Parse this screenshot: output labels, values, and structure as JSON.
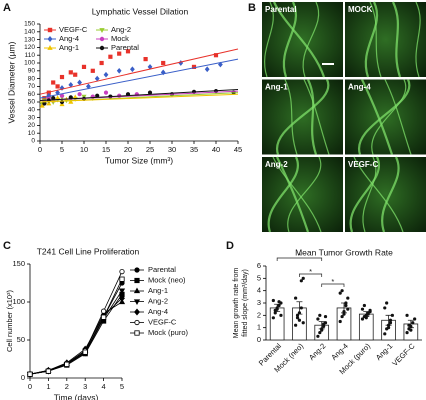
{
  "chart_data": [
    {
      "type": "scatter",
      "panel": "A",
      "title": "Lymphatic Vessel Dilation",
      "x_label": "Tumor Size (mm³)",
      "y_label": "Vessel Diameter (µm)",
      "xlim": [
        0,
        45
      ],
      "xticks": [
        0,
        5,
        10,
        15,
        20,
        25,
        30,
        35,
        40,
        45
      ],
      "ylim": [
        0,
        150
      ],
      "yticks": [
        0,
        10,
        20,
        30,
        40,
        50,
        60,
        70,
        80,
        90,
        100,
        110,
        120,
        130,
        140,
        150
      ],
      "series": [
        {
          "name": "VEGF-C",
          "color": "#e8322b",
          "marker": "square",
          "x": [
            1,
            2,
            3,
            4,
            5,
            7,
            8,
            10,
            12,
            14,
            16,
            18,
            20,
            24,
            28,
            35,
            40
          ],
          "values": [
            55,
            62,
            75,
            70,
            82,
            88,
            85,
            95,
            90,
            100,
            108,
            112,
            115,
            105,
            100,
            95,
            110
          ],
          "fit_x": [
            0,
            45
          ],
          "fit_y": [
            60,
            118
          ]
        },
        {
          "name": "Ang-2",
          "color": "#9acd32",
          "marker": "triangle-down",
          "x": [
            0.5,
            1,
            2,
            3,
            4,
            5,
            6,
            8,
            10,
            12
          ],
          "values": [
            48,
            52,
            55,
            50,
            53,
            56,
            52,
            54,
            57,
            55
          ],
          "fit_x": [
            0,
            45
          ],
          "fit_y": [
            50,
            62
          ]
        },
        {
          "name": "Ang-4",
          "color": "#3a5fc8",
          "marker": "diamond",
          "x": [
            1,
            2,
            4,
            5,
            7,
            9,
            11,
            13,
            15,
            18,
            21,
            25,
            28,
            32,
            38,
            41
          ],
          "values": [
            50,
            58,
            62,
            68,
            72,
            75,
            70,
            80,
            85,
            90,
            92,
            95,
            88,
            100,
            92,
            98
          ],
          "fit_x": [
            0,
            45
          ],
          "fit_y": [
            55,
            105
          ]
        },
        {
          "name": "Mock",
          "color": "#c83fbf",
          "marker": "circle",
          "x": [
            1,
            2,
            3,
            5,
            7,
            9,
            12,
            15,
            18,
            22
          ],
          "values": [
            50,
            55,
            52,
            58,
            55,
            60,
            57,
            62,
            58,
            60
          ],
          "fit_x": [
            0,
            45
          ],
          "fit_y": [
            52,
            64
          ]
        },
        {
          "name": "Ang-1",
          "color": "#f0c400",
          "marker": "triangle-up",
          "x": [
            0.5,
            1,
            2,
            3,
            4,
            5,
            6,
            7,
            8
          ],
          "values": [
            45,
            50,
            48,
            52,
            55,
            47,
            53,
            50,
            56
          ],
          "fit_x": [
            0,
            45
          ],
          "fit_y": [
            50,
            60
          ]
        },
        {
          "name": "Parental",
          "color": "#111111",
          "marker": "circle",
          "x": [
            1,
            2,
            3,
            5,
            7,
            10,
            13,
            16,
            20,
            25,
            30,
            35,
            40,
            44
          ],
          "values": [
            48,
            52,
            55,
            50,
            56,
            54,
            58,
            57,
            60,
            62,
            60,
            63,
            64,
            62
          ],
          "fit_x": [
            0,
            45
          ],
          "fit_y": [
            52,
            66
          ]
        }
      ]
    },
    {
      "type": "line",
      "panel": "C",
      "title": "T241 Cell Line Proliferation",
      "x_label": "Time (days)",
      "y_label": "Cell number (x10³)",
      "x": [
        0,
        1,
        2,
        3,
        4,
        5
      ],
      "xlim": [
        0,
        5
      ],
      "xticks": [
        0,
        1,
        2,
        3,
        4,
        5
      ],
      "ylim": [
        0,
        150
      ],
      "yticks": [
        0,
        50,
        100,
        150
      ],
      "series": [
        {
          "name": "Parental",
          "color": "#000000",
          "marker": "circle",
          "filled": true,
          "values": [
            5,
            9,
            18,
            35,
            80,
            125
          ]
        },
        {
          "name": "Mock (neo)",
          "color": "#000000",
          "marker": "square",
          "filled": true,
          "values": [
            5,
            9,
            17,
            32,
            75,
            110
          ]
        },
        {
          "name": "Ang-1",
          "color": "#000000",
          "marker": "triangle-up",
          "filled": true,
          "values": [
            5,
            10,
            19,
            36,
            85,
            100
          ]
        },
        {
          "name": "Ang-2",
          "color": "#000000",
          "marker": "triangle-down",
          "filled": true,
          "values": [
            5,
            9,
            18,
            33,
            78,
            115
          ]
        },
        {
          "name": "Ang-4",
          "color": "#000000",
          "marker": "diamond",
          "filled": true,
          "values": [
            5,
            10,
            20,
            38,
            82,
            105
          ]
        },
        {
          "name": "VEGF-C",
          "color": "#000000",
          "marker": "circle",
          "filled": false,
          "values": [
            5,
            10,
            19,
            36,
            88,
            140
          ]
        },
        {
          "name": "Mock (puro)",
          "color": "#000000",
          "marker": "square",
          "filled": false,
          "values": [
            5,
            9,
            18,
            34,
            80,
            130
          ]
        }
      ]
    },
    {
      "type": "bar",
      "panel": "D",
      "title": "Mean Tumor Growth Rate",
      "y_label": [
        "Mean growth rate from",
        "fitted slope (mm³/day)"
      ],
      "categories": [
        "Parental",
        "Mock (neo)",
        "Ang-2",
        "Ang-4",
        "Mock (puro)",
        "Ang-1",
        "VEGF-C"
      ],
      "values": [
        2.6,
        2.6,
        1.2,
        2.6,
        2.1,
        1.6,
        1.3
      ],
      "errors": [
        0.3,
        0.5,
        0.3,
        0.4,
        0.2,
        0.4,
        0.3
      ],
      "points": [
        [
          1.8,
          2.2,
          2.5,
          2.8,
          3.0,
          3.2,
          2.4,
          2.6,
          3.1,
          2.0
        ],
        [
          1.2,
          1.8,
          2.2,
          4.8,
          5.0,
          3.4,
          2.0,
          1.6,
          2.6,
          1.4
        ],
        [
          0.3,
          0.6,
          0.9,
          1.1,
          1.4,
          1.7,
          2.0,
          0.8,
          1.3,
          1.9
        ],
        [
          1.5,
          1.9,
          2.3,
          2.8,
          3.4,
          3.8,
          4.0,
          2.1,
          3.0,
          2.5
        ],
        [
          1.7,
          1.9,
          2.0,
          2.2,
          2.3,
          2.5,
          2.8,
          1.8,
          2.1,
          2.4
        ],
        [
          0.5,
          0.9,
          1.2,
          1.6,
          2.0,
          2.6,
          3.0,
          1.0,
          1.4
        ],
        [
          0.6,
          0.9,
          1.1,
          1.4,
          1.7,
          2.0,
          1.2,
          0.8
        ]
      ],
      "ylim": [
        0,
        6
      ],
      "yticks": [
        0,
        1,
        2,
        3,
        4,
        5,
        6
      ],
      "significance": [
        {
          "pair": [
            "Parental",
            "Ang-2"
          ],
          "label": "*"
        },
        {
          "pair": [
            "Mock (neo)",
            "Ang-2"
          ],
          "label": "*"
        },
        {
          "pair": [
            "Ang-2",
            "Ang-4"
          ],
          "label": "*"
        }
      ]
    }
  ],
  "images": {
    "panel": "B",
    "tiles": [
      "Parental",
      "MOCK",
      "Ang-1",
      "Ang-4",
      "Ang-2",
      "VEGF-C"
    ]
  }
}
